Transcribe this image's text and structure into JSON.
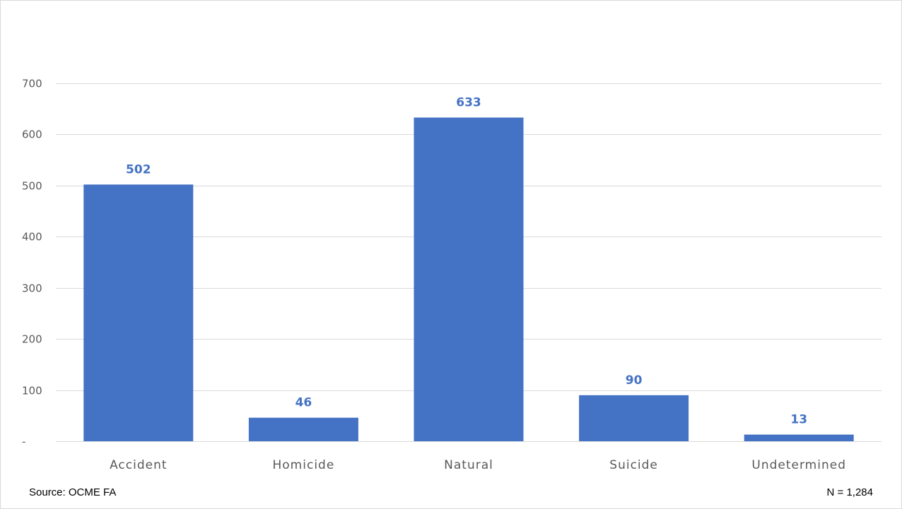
{
  "chart_data": {
    "type": "bar",
    "categories": [
      "Accident",
      "Homicide",
      "Natural",
      "Suicide",
      "Undetermined"
    ],
    "values": [
      502,
      46,
      633,
      90,
      13
    ],
    "data_labels": [
      "502",
      "46",
      "633",
      "90",
      "13"
    ],
    "title": "",
    "xlabel": "",
    "ylabel": "",
    "ylim": [
      0,
      700
    ],
    "yticks": [
      0,
      100,
      200,
      300,
      400,
      500,
      600,
      700
    ],
    "ytick_labels": [
      "-",
      "100",
      "200",
      "300",
      "400",
      "500",
      "600",
      "700"
    ],
    "grid": true,
    "legend": "none",
    "bar_color": "#4472c4",
    "label_color": "#4472c4",
    "grid_color": "#d9d9d9"
  },
  "footer": {
    "source": "Source: OCME FA",
    "n": "N = 1,284"
  }
}
